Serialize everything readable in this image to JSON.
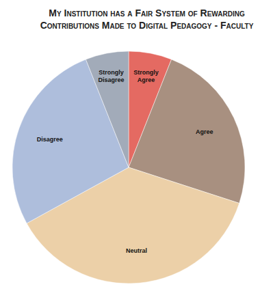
{
  "chart_data": {
    "type": "pie",
    "title": "My Institution has a Fair System of Rewarding Contributions Made to Digital Pedagogy - Faculty",
    "categories": [
      "Strongly Agree",
      "Agree",
      "Neutral",
      "Disagree",
      "Strongly Disagree"
    ],
    "values": [
      6,
      24,
      37,
      27,
      6
    ],
    "colors": [
      "#e46a62",
      "#a89080",
      "#ecd0a8",
      "#aebedc",
      "#a2abb9"
    ]
  }
}
